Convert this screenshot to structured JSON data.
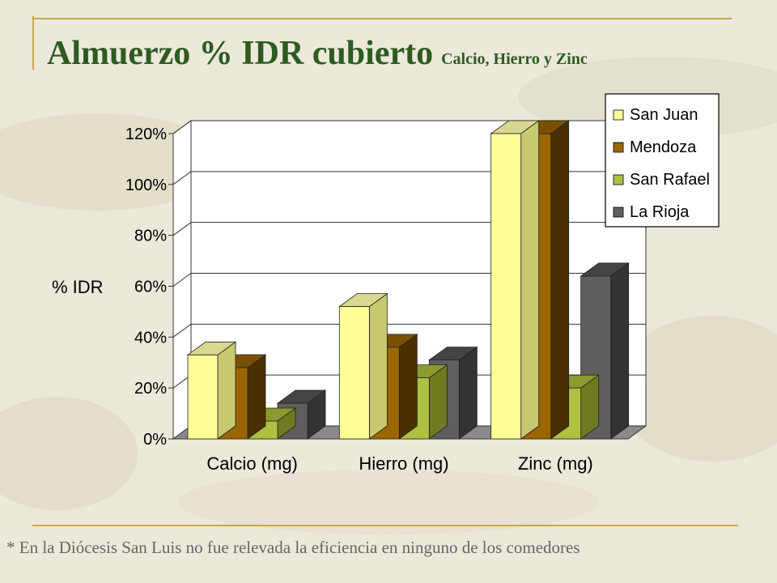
{
  "slide": {
    "title": "Almuerzo % IDR cubierto",
    "subtitle": "Calcio, Hierro y Zinc",
    "footnote": "* En la Diócesis San Luis no fue relevada la eficiencia en ninguno de los comedores"
  },
  "colors": {
    "title": "#2d5b22",
    "accent_rule": "#c8a84a",
    "background": "#ece8da"
  },
  "chart_data": {
    "type": "bar",
    "title": "",
    "xlabel": "",
    "ylabel": "% IDR",
    "categories": [
      "Calcio (mg)",
      "Hierro (mg)",
      "Zinc (mg)"
    ],
    "series": [
      {
        "name": "San Juan",
        "values": [
          33,
          52,
          120
        ],
        "color": "#ffff99",
        "side": "#c8c870",
        "top": "#d8d890"
      },
      {
        "name": "Mendoza",
        "values": [
          28,
          36,
          120
        ],
        "color": "#996600",
        "side": "#4a3000",
        "top": "#7a5000"
      },
      {
        "name": "San Rafael",
        "values": [
          7,
          24,
          20
        ],
        "color": "#b0c040",
        "side": "#707a20",
        "top": "#8c9a30"
      },
      {
        "name": "La Rioja",
        "values": [
          14,
          31,
          64
        ],
        "color": "#5f5f5f",
        "side": "#333333",
        "top": "#444444"
      }
    ],
    "ylim": [
      0,
      120
    ],
    "yticks": [
      "0%",
      "20%",
      "40%",
      "60%",
      "80%",
      "100%",
      "120%"
    ],
    "grid": true,
    "legend_position": "top-right",
    "three_d": true
  }
}
